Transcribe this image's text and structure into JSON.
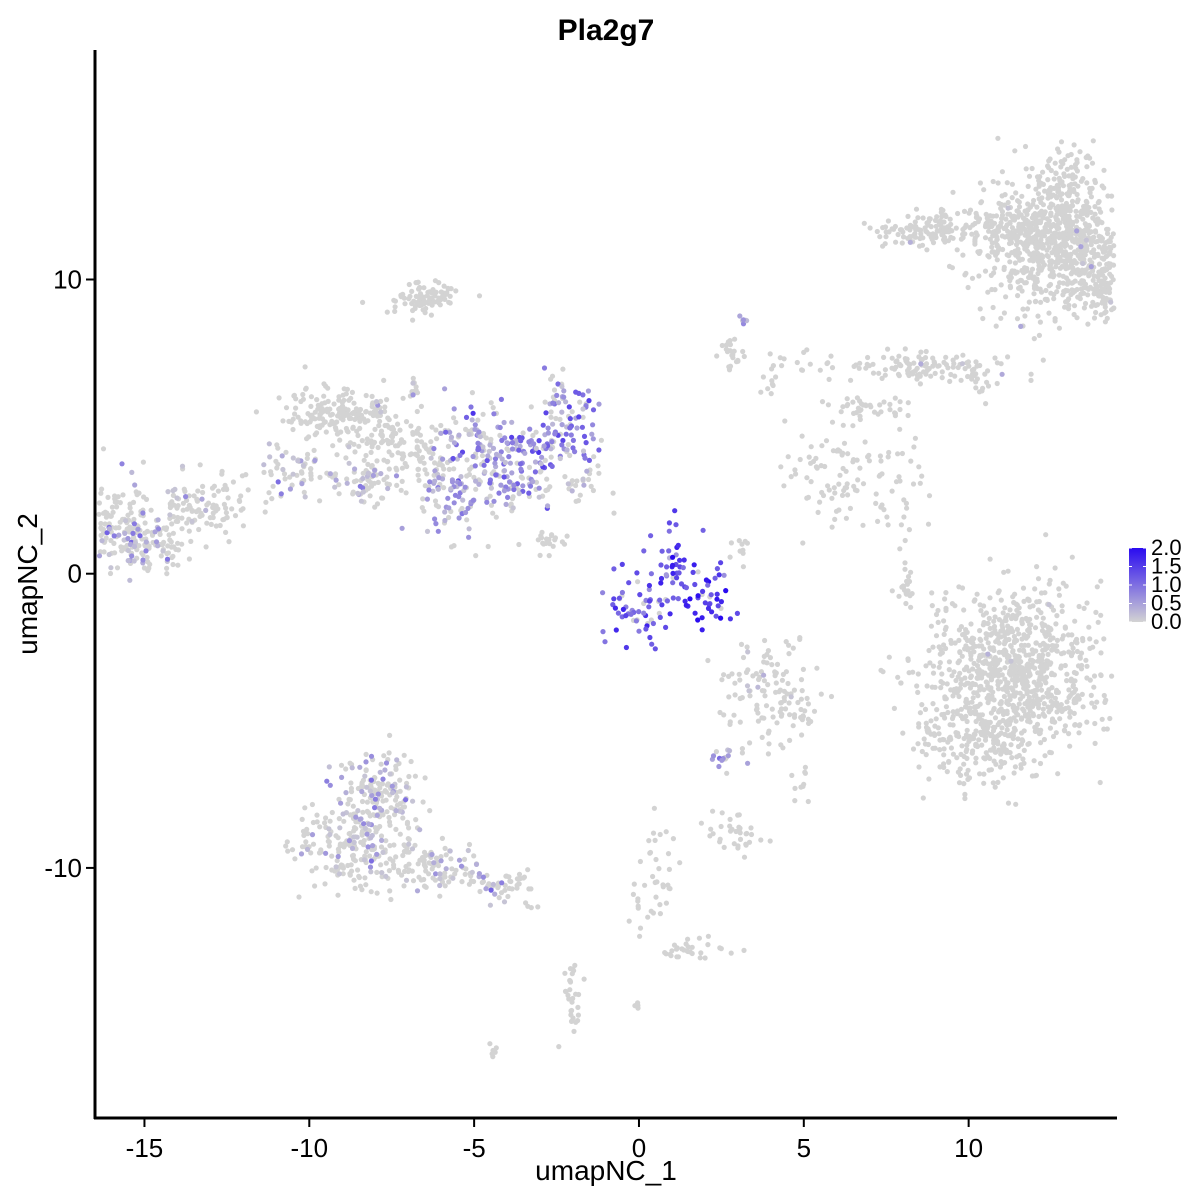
{
  "chart_data": {
    "type": "scatter",
    "title": "Pla2g7",
    "xlabel": "umapNC_1",
    "ylabel": "umapNC_2",
    "xlim": [
      -16.5,
      14.5
    ],
    "ylim": [
      -18.5,
      17.8
    ],
    "x_ticks": [
      -15,
      -10,
      -5,
      0,
      5,
      10
    ],
    "x_tick_labels": [
      "-15",
      "-10",
      "-5",
      "0",
      "5",
      "10"
    ],
    "y_ticks": [
      -10,
      0,
      10
    ],
    "y_tick_labels": [
      "-10",
      "0",
      "10"
    ],
    "grid": false,
    "legend": {
      "placement": "right",
      "type": "colorbar",
      "min": 0.0,
      "max": 2.0,
      "ticks": [
        2.0,
        1.5,
        1.0,
        0.5,
        0.0
      ],
      "tick_labels": [
        "2.0",
        "1.5",
        "1.0",
        "0.5",
        "0.0"
      ],
      "low_color": "#d3d3d3",
      "high_color": "#2a0bf0"
    },
    "clusters": [
      {
        "cx": 12.4,
        "cy": 11.2,
        "sx": 1.0,
        "sy": 1.2,
        "n": 600,
        "expr": 0.0,
        "exprFrac": 0.01
      },
      {
        "cx": 14.3,
        "cy": 9.8,
        "sx": 0.7,
        "sy": 0.45,
        "n": 180,
        "expr": 0.0,
        "exprFrac": 0.02
      },
      {
        "cx": 13.7,
        "cy": 11.3,
        "sx": 0.9,
        "sy": 0.4,
        "n": 150,
        "expr": 0.0,
        "exprFrac": 0.02
      },
      {
        "cx": 11.0,
        "cy": 11.9,
        "sx": 1.0,
        "sy": 0.3,
        "n": 110,
        "expr": 0.0,
        "exprFrac": 0.0
      },
      {
        "cx": 8.7,
        "cy": 11.6,
        "sx": 0.8,
        "sy": 0.3,
        "n": 110,
        "expr": 0.0,
        "exprFrac": 0.01
      },
      {
        "cx": 12.9,
        "cy": 12.9,
        "sx": 0.5,
        "sy": 0.8,
        "n": 120,
        "expr": 0.0,
        "exprFrac": 0.0
      },
      {
        "cx": 8.7,
        "cy": 7.0,
        "sx": 1.3,
        "sy": 0.25,
        "n": 120,
        "expr": 0.0,
        "exprFrac": 0.02
      },
      {
        "cx": 10.4,
        "cy": 6.4,
        "sx": 0.3,
        "sy": 0.3,
        "n": 15,
        "expr": 0.0,
        "exprFrac": 0.0
      },
      {
        "cx": 2.8,
        "cy": 7.4,
        "sx": 0.15,
        "sy": 0.3,
        "n": 25,
        "expr": 0.0,
        "exprFrac": 0.0
      },
      {
        "cx": 3.2,
        "cy": 8.6,
        "sx": 0.08,
        "sy": 0.08,
        "n": 6,
        "expr": 0.4,
        "exprFrac": 0.5
      },
      {
        "cx": 3.9,
        "cy": 6.4,
        "sx": 0.2,
        "sy": 0.2,
        "n": 8,
        "expr": 0.0,
        "exprFrac": 0.0
      },
      {
        "cx": 4.4,
        "cy": 7.2,
        "sx": 0.5,
        "sy": 0.25,
        "n": 12,
        "expr": 0.0,
        "exprFrac": 0.0
      },
      {
        "cx": 7.0,
        "cy": 5.7,
        "sx": 0.7,
        "sy": 0.3,
        "n": 40,
        "expr": 0.0,
        "exprFrac": 0.0
      },
      {
        "cx": 5.8,
        "cy": 3.4,
        "sx": 0.7,
        "sy": 0.9,
        "n": 70,
        "expr": 0.0,
        "exprFrac": 0.0
      },
      {
        "cx": 7.8,
        "cy": 2.9,
        "sx": 0.6,
        "sy": 0.8,
        "n": 40,
        "expr": 0.0,
        "exprFrac": 0.0
      },
      {
        "cx": -6.5,
        "cy": 9.3,
        "sx": 0.6,
        "sy": 0.25,
        "n": 90,
        "expr": 0.0,
        "exprFrac": 0.0
      },
      {
        "cx": -6.8,
        "cy": 6.3,
        "sx": 0.05,
        "sy": 0.15,
        "n": 12,
        "expr": 0.3,
        "exprFrac": 0.2
      },
      {
        "cx": -8.0,
        "cy": 5.7,
        "sx": 0.15,
        "sy": 0.15,
        "n": 10,
        "expr": 0.2,
        "exprFrac": 0.2
      },
      {
        "cx": -9.2,
        "cy": 5.4,
        "sx": 0.8,
        "sy": 0.45,
        "n": 160,
        "expr": 0.0,
        "exprFrac": 0.0
      },
      {
        "cx": -7.6,
        "cy": 4.5,
        "sx": 0.6,
        "sy": 0.6,
        "n": 80,
        "expr": 0.0,
        "exprFrac": 0.02
      },
      {
        "cx": -6.6,
        "cy": 4.0,
        "sx": 0.5,
        "sy": 0.6,
        "n": 50,
        "expr": 0.0,
        "exprFrac": 0.02
      },
      {
        "cx": -10.5,
        "cy": 3.6,
        "sx": 0.6,
        "sy": 0.6,
        "n": 60,
        "expr": 0.3,
        "exprFrac": 0.3
      },
      {
        "cx": -8.3,
        "cy": 3.1,
        "sx": 0.6,
        "sy": 0.4,
        "n": 60,
        "expr": 0.3,
        "exprFrac": 0.3
      },
      {
        "cx": -5.8,
        "cy": 2.5,
        "sx": 0.6,
        "sy": 0.8,
        "n": 70,
        "expr": 0.6,
        "exprFrac": 0.6
      },
      {
        "cx": -5.0,
        "cy": 4.8,
        "sx": 0.5,
        "sy": 0.7,
        "n": 60,
        "expr": 0.6,
        "exprFrac": 0.5
      },
      {
        "cx": -4.3,
        "cy": 3.0,
        "sx": 0.8,
        "sy": 0.5,
        "n": 110,
        "expr": 0.7,
        "exprFrac": 0.6
      },
      {
        "cx": -3.3,
        "cy": 4.3,
        "sx": 0.9,
        "sy": 0.4,
        "n": 110,
        "expr": 0.9,
        "exprFrac": 0.7
      },
      {
        "cx": -2.2,
        "cy": 5.6,
        "sx": 0.5,
        "sy": 0.6,
        "n": 60,
        "expr": 0.8,
        "exprFrac": 0.6
      },
      {
        "cx": -1.8,
        "cy": 3.1,
        "sx": 0.4,
        "sy": 0.5,
        "n": 30,
        "expr": 0.3,
        "exprFrac": 0.3
      },
      {
        "cx": -2.8,
        "cy": 1.0,
        "sx": 0.4,
        "sy": 0.2,
        "n": 20,
        "expr": 0.0,
        "exprFrac": 0.0
      },
      {
        "cx": 0.0,
        "cy": -1.0,
        "sx": 0.6,
        "sy": 0.7,
        "n": 60,
        "expr": 1.2,
        "exprFrac": 0.8
      },
      {
        "cx": 1.1,
        "cy": 0.2,
        "sx": 0.4,
        "sy": 0.8,
        "n": 40,
        "expr": 1.3,
        "exprFrac": 0.9
      },
      {
        "cx": 3.0,
        "cy": 0.7,
        "sx": 0.2,
        "sy": 0.5,
        "n": 10,
        "expr": 0.0,
        "exprFrac": 0.0
      },
      {
        "cx": 1.9,
        "cy": -1.2,
        "sx": 0.5,
        "sy": 0.35,
        "n": 25,
        "expr": 1.6,
        "exprFrac": 0.95
      },
      {
        "cx": 2.3,
        "cy": -0.4,
        "sx": 0.3,
        "sy": 0.4,
        "n": 15,
        "expr": 1.5,
        "exprFrac": 0.9
      },
      {
        "cx": 3.9,
        "cy": -3.7,
        "sx": 0.8,
        "sy": 0.7,
        "n": 90,
        "expr": 0.0,
        "exprFrac": 0.02
      },
      {
        "cx": 4.6,
        "cy": -4.8,
        "sx": 0.5,
        "sy": 0.5,
        "n": 35,
        "expr": 0.0,
        "exprFrac": 0.0
      },
      {
        "cx": 2.6,
        "cy": -6.2,
        "sx": 0.3,
        "sy": 0.2,
        "n": 20,
        "expr": 0.3,
        "exprFrac": 0.4
      },
      {
        "cx": 11.4,
        "cy": -3.3,
        "sx": 1.3,
        "sy": 1.4,
        "n": 900,
        "expr": 0.0,
        "exprFrac": 0.005
      },
      {
        "cx": 10.6,
        "cy": -5.8,
        "sx": 0.8,
        "sy": 0.7,
        "n": 150,
        "expr": 0.0,
        "exprFrac": 0.01
      },
      {
        "cx": 8.9,
        "cy": -5.5,
        "sx": 0.4,
        "sy": 0.6,
        "n": 30,
        "expr": 0.0,
        "exprFrac": 0.0
      },
      {
        "cx": 8.1,
        "cy": -0.2,
        "sx": 0.1,
        "sy": 0.6,
        "n": 20,
        "expr": 0.0,
        "exprFrac": 0.0
      },
      {
        "cx": 2.9,
        "cy": -8.8,
        "sx": 0.5,
        "sy": 0.3,
        "n": 35,
        "expr": 0.0,
        "exprFrac": 0.0
      },
      {
        "cx": 4.9,
        "cy": -7.3,
        "sx": 0.15,
        "sy": 0.3,
        "n": 10,
        "expr": 0.0,
        "exprFrac": 0.0
      },
      {
        "cx": 0.7,
        "cy": -9.6,
        "sx": 0.3,
        "sy": 0.8,
        "n": 25,
        "expr": 0.0,
        "exprFrac": 0.0
      },
      {
        "cx": 0.2,
        "cy": -11.3,
        "sx": 0.3,
        "sy": 0.4,
        "n": 15,
        "expr": 0.0,
        "exprFrac": 0.0
      },
      {
        "cx": 1.6,
        "cy": -12.8,
        "sx": 0.6,
        "sy": 0.2,
        "n": 30,
        "expr": 0.0,
        "exprFrac": 0.0
      },
      {
        "cx": -0.1,
        "cy": -14.6,
        "sx": 0.1,
        "sy": 0.1,
        "n": 5,
        "expr": 0.0,
        "exprFrac": 0.0
      },
      {
        "cx": -2.0,
        "cy": -14.4,
        "sx": 0.15,
        "sy": 0.6,
        "n": 30,
        "expr": 0.0,
        "exprFrac": 0.0
      },
      {
        "cx": -4.4,
        "cy": -16.2,
        "sx": 0.1,
        "sy": 0.1,
        "n": 6,
        "expr": 0.0,
        "exprFrac": 0.0
      },
      {
        "cx": -3.3,
        "cy": -11.2,
        "sx": 0.1,
        "sy": 0.1,
        "n": 4,
        "expr": 0.0,
        "exprFrac": 0.0
      },
      {
        "cx": -7.9,
        "cy": -7.4,
        "sx": 0.6,
        "sy": 0.7,
        "n": 140,
        "expr": 0.4,
        "exprFrac": 0.25
      },
      {
        "cx": -8.6,
        "cy": -9.3,
        "sx": 0.9,
        "sy": 0.8,
        "n": 220,
        "expr": 0.3,
        "exprFrac": 0.2
      },
      {
        "cx": -6.0,
        "cy": -10.0,
        "sx": 0.7,
        "sy": 0.4,
        "n": 90,
        "expr": 0.4,
        "exprFrac": 0.25
      },
      {
        "cx": -4.2,
        "cy": -10.5,
        "sx": 0.6,
        "sy": 0.25,
        "n": 50,
        "expr": 0.3,
        "exprFrac": 0.2
      },
      {
        "cx": -15.9,
        "cy": 1.6,
        "sx": 0.8,
        "sy": 0.7,
        "n": 200,
        "expr": 0.5,
        "exprFrac": 0.25
      },
      {
        "cx": -14.7,
        "cy": 1.0,
        "sx": 0.6,
        "sy": 0.5,
        "n": 80,
        "expr": 0.4,
        "exprFrac": 0.2
      },
      {
        "cx": -13.8,
        "cy": 2.3,
        "sx": 0.4,
        "sy": 0.5,
        "n": 40,
        "expr": 0.2,
        "exprFrac": 0.15
      },
      {
        "cx": -12.9,
        "cy": 2.4,
        "sx": 0.6,
        "sy": 0.5,
        "n": 60,
        "expr": 0.0,
        "exprFrac": 0.0
      }
    ]
  }
}
